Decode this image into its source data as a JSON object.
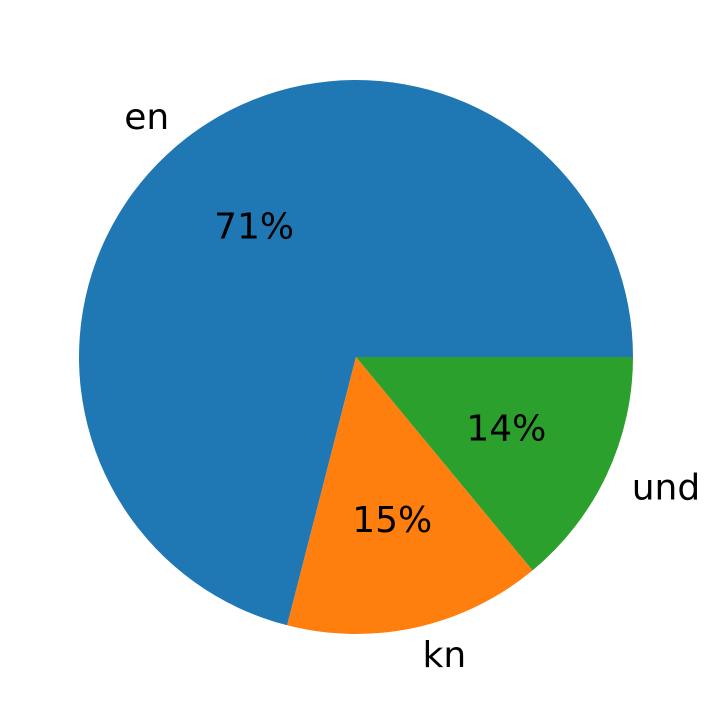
{
  "chart_data": {
    "type": "pie",
    "title": "",
    "labels": [
      "en",
      "kn",
      "und"
    ],
    "values": [
      71,
      15,
      14
    ],
    "pct_labels": [
      "71%",
      "15%",
      "14%"
    ],
    "colors": [
      "#1f77b4",
      "#ff7f0e",
      "#2ca02c"
    ],
    "text_color": "#000000",
    "background_color": "#ffffff",
    "start_angle": 0,
    "direction": "counterclockwise",
    "label_distance": 1.1,
    "pct_distance": 0.6,
    "legend": "none",
    "grid": "off"
  }
}
